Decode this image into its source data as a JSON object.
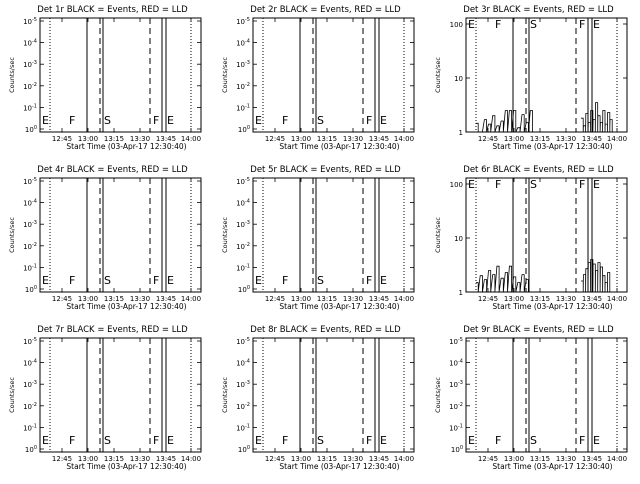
{
  "chart_data": [
    {
      "type": "line",
      "title": "Det 1r BLACK = Events, RED = LLD",
      "xlabel": "Start Time (03-Apr-17 12:30:40)",
      "ylabel": "Counts/sec",
      "x_ticks": [
        "12:45",
        "13:00",
        "13:15",
        "13:30",
        "13:45",
        "14:00"
      ],
      "y_ticks": [
        "10^0",
        "10^-1",
        "10^-2",
        "10^-3",
        "10^-4",
        "10^-5"
      ],
      "markers": [
        "E",
        "F",
        "S",
        "F",
        "E"
      ],
      "series": []
    },
    {
      "type": "line",
      "title": "Det 2r BLACK = Events, RED = LLD",
      "xlabel": "Start Time (03-Apr-17 12:30:40)",
      "ylabel": "Counts/sec",
      "x_ticks": [
        "12:45",
        "13:00",
        "13:15",
        "13:30",
        "13:45",
        "14:00"
      ],
      "y_ticks": [
        "10^0",
        "10^-1",
        "10^-2",
        "10^-3",
        "10^-4",
        "10^-5"
      ],
      "markers": [
        "E",
        "F",
        "S",
        "F",
        "E"
      ],
      "series": []
    },
    {
      "type": "line",
      "title": "Det 3r BLACK = Events, RED = LLD",
      "xlabel": "Start Time (03-Apr-17 12:30:40)",
      "ylabel": "Counts/sec",
      "x_ticks": [
        "12:45",
        "13:00",
        "13:15",
        "13:30",
        "13:45",
        "14:00"
      ],
      "y_ticks": [
        "1",
        "10",
        "100"
      ],
      "markers": [
        "E",
        "F",
        "S",
        "F",
        "E"
      ],
      "series": [
        {
          "values": [
            [
              0.95,
              2
            ],
            [
              0.5,
              2
            ],
            [
              1.2,
              2
            ],
            [
              0.9,
              2
            ],
            [
              1.5,
              2
            ],
            [
              0.8,
              2
            ],
            [
              1.1,
              2
            ],
            [
              2,
              2
            ],
            [
              1.5,
              3
            ],
            [
              2,
              2
            ],
            [
              0.7,
              2
            ],
            [
              1.6,
              2
            ],
            [
              1,
              2
            ],
            [
              2,
              2
            ]
          ]
        },
        {
          "values": [
            [
              1.3,
              2
            ],
            [
              0.8,
              2
            ],
            [
              1.7,
              2
            ],
            [
              1,
              2
            ],
            [
              2,
              2
            ],
            [
              1.2,
              2
            ],
            [
              3,
              2
            ],
            [
              1.5,
              2
            ],
            [
              1,
              2
            ],
            [
              2,
              2
            ],
            [
              0.9,
              2
            ],
            [
              1.8,
              2
            ],
            [
              1.2,
              2
            ]
          ]
        }
      ]
    },
    {
      "type": "line",
      "title": "Det 4r BLACK = Events, RED = LLD",
      "xlabel": "Start Time (03-Apr-17 12:30:40)",
      "ylabel": "Counts/sec",
      "x_ticks": [
        "12:45",
        "13:00",
        "13:15",
        "13:30",
        "13:45",
        "14:00"
      ],
      "y_ticks": [
        "10^0",
        "10^-1",
        "10^-2",
        "10^-3",
        "10^-4",
        "10^-5"
      ],
      "markers": [
        "E",
        "F",
        "S",
        "F",
        "E"
      ],
      "series": []
    },
    {
      "type": "line",
      "title": "Det 5r BLACK = Events, RED = LLD",
      "xlabel": "Start Time (03-Apr-17 12:30:40)",
      "ylabel": "Counts/sec",
      "x_ticks": [
        "12:45",
        "13:00",
        "13:15",
        "13:30",
        "13:45",
        "14:00"
      ],
      "y_ticks": [
        "10^0",
        "10^-1",
        "10^-2",
        "10^-3",
        "10^-4",
        "10^-5"
      ],
      "markers": [
        "E",
        "F",
        "S",
        "F",
        "E"
      ],
      "series": []
    },
    {
      "type": "line",
      "title": "Det 6r BLACK = Events, RED = LLD",
      "xlabel": "Start Time (03-Apr-17 12:30:40)",
      "ylabel": "Counts/sec",
      "x_ticks": [
        "12:45",
        "13:00",
        "13:15",
        "13:30",
        "13:45",
        "14:00"
      ],
      "y_ticks": [
        "1",
        "10",
        "100"
      ],
      "markers": [
        "E",
        "F",
        "S",
        "F",
        "E"
      ],
      "series": [
        {
          "values": [
            [
              1,
              2
            ],
            [
              1.5,
              2
            ],
            [
              1.2,
              2
            ],
            [
              2,
              2
            ],
            [
              1.6,
              2
            ],
            [
              2,
              3
            ],
            [
              1.3,
              2
            ],
            [
              1.8,
              2
            ],
            [
              2.5,
              2
            ],
            [
              1.4,
              2
            ],
            [
              1,
              2
            ],
            [
              1.6,
              2
            ],
            [
              1.2,
              2
            ]
          ]
        },
        {
          "values": [
            [
              1.1,
              2
            ],
            [
              1.6,
              2
            ],
            [
              2.2,
              2
            ],
            [
              3,
              2
            ],
            [
              3.5,
              2
            ],
            [
              2.8,
              2
            ],
            [
              2,
              2
            ],
            [
              3,
              2
            ],
            [
              2.4,
              2
            ],
            [
              1.5,
              2
            ],
            [
              1,
              2
            ],
            [
              1.8,
              2
            ]
          ]
        }
      ]
    },
    {
      "type": "line",
      "title": "Det 7r BLACK = Events, RED = LLD",
      "xlabel": "Start Time (03-Apr-17 12:30:40)",
      "ylabel": "Counts/sec",
      "x_ticks": [
        "12:45",
        "13:00",
        "13:15",
        "13:30",
        "13:45",
        "14:00"
      ],
      "y_ticks": [
        "10^0",
        "10^-1",
        "10^-2",
        "10^-3",
        "10^-4",
        "10^-5"
      ],
      "markers": [
        "E",
        "F",
        "S",
        "F",
        "E"
      ],
      "series": []
    },
    {
      "type": "line",
      "title": "Det 8r BLACK = Events, RED = LLD",
      "xlabel": "Start Time (03-Apr-17 12:30:40)",
      "ylabel": "Counts/sec",
      "x_ticks": [
        "12:45",
        "13:00",
        "13:15",
        "13:30",
        "13:45",
        "14:00"
      ],
      "y_ticks": [
        "10^0",
        "10^-1",
        "10^-2",
        "10^-3",
        "10^-4",
        "10^-5"
      ],
      "markers": [
        "E",
        "F",
        "S",
        "F",
        "E"
      ],
      "series": []
    },
    {
      "type": "line",
      "title": "Det 9r BLACK = Events, RED = LLD",
      "xlabel": "Start Time (03-Apr-17 12:30:40)",
      "ylabel": "Counts/sec",
      "x_ticks": [
        "12:45",
        "13:00",
        "13:15",
        "13:30",
        "13:45",
        "14:00"
      ],
      "y_ticks": [
        "10^0",
        "10^-1",
        "10^-2",
        "10^-3",
        "10^-4",
        "10^-5"
      ],
      "markers": [
        "E",
        "F",
        "S",
        "F",
        "E"
      ],
      "series": []
    }
  ]
}
